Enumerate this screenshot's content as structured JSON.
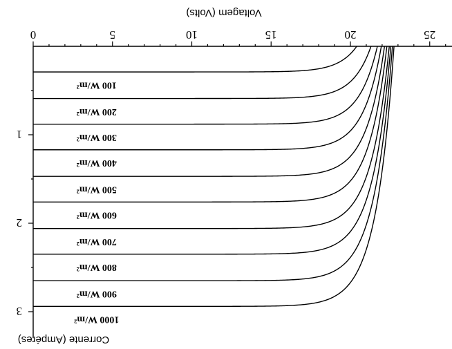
{
  "chart_data": {
    "type": "line",
    "xlabel": "Voltagem (Volts)",
    "ylabel": "Corrente (Ampéres)",
    "x_axis_position": "top",
    "y_axis_inverted": true,
    "image_rotated_180": true,
    "xlim": [
      0,
      28
    ],
    "ylim": [
      0,
      3.3
    ],
    "x_ticks": [
      0,
      5,
      10,
      15,
      20,
      25
    ],
    "y_ticks": [
      1,
      2,
      3
    ],
    "grid": false,
    "legend": "inline labels",
    "series": [
      {
        "name": "100 W/m²",
        "isc": 0.29,
        "voc": 20.4
      },
      {
        "name": "200 W/m²",
        "isc": 0.59,
        "voc": 21.3
      },
      {
        "name": "300 W/m²",
        "isc": 0.88,
        "voc": 21.7
      },
      {
        "name": "400 W/m²",
        "isc": 1.17,
        "voc": 21.95
      },
      {
        "name": "500 W/m²",
        "isc": 1.47,
        "voc": 22.15
      },
      {
        "name": "600 W/m²",
        "isc": 1.76,
        "voc": 22.3
      },
      {
        "name": "700 W/m²",
        "isc": 2.06,
        "voc": 22.45
      },
      {
        "name": "800 W/m²",
        "isc": 2.35,
        "voc": 22.55
      },
      {
        "name": "900 W/m²",
        "isc": 2.65,
        "voc": 22.65
      },
      {
        "name": "1000 W/m²",
        "isc": 2.94,
        "voc": 22.75
      }
    ]
  }
}
